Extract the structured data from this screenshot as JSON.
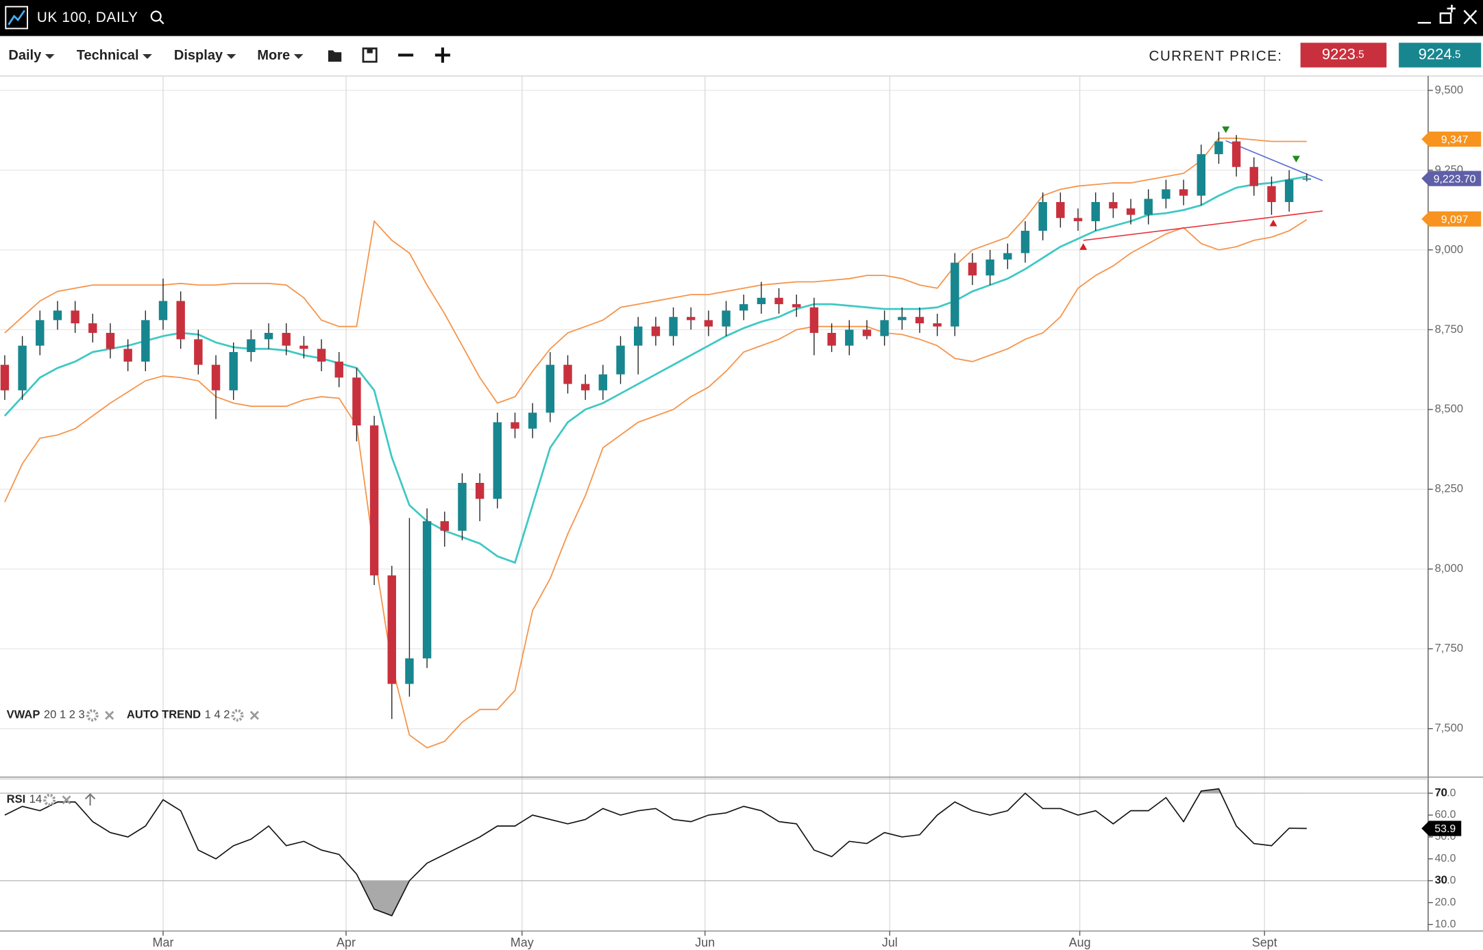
{
  "window": {
    "title": "UK 100, DAILY"
  },
  "toolbar": {
    "menus": [
      "Daily",
      "Technical",
      "Display",
      "More"
    ],
    "price_label": "CURRENT PRICE:",
    "bid": "9223",
    "bid_fraction": ".5",
    "ask": "9224",
    "ask_fraction": ".5"
  },
  "chart_data": {
    "type": "candlestick",
    "xlim": [
      -0.27,
      80.9
    ],
    "xticks": [
      {
        "value": 9,
        "label": "Mar"
      },
      {
        "value": 19.4,
        "label": "Apr"
      },
      {
        "value": 29.4,
        "label": "May"
      },
      {
        "value": 39.8,
        "label": "Jun"
      },
      {
        "value": 50.3,
        "label": "Jul"
      },
      {
        "value": 61.1,
        "label": "Aug"
      },
      {
        "value": 71.6,
        "label": "Sept"
      }
    ],
    "ylim": [
      7348,
      9545
    ],
    "yticks": [
      {
        "value": 7500,
        "label": "7,500"
      },
      {
        "value": 7750,
        "label": "7,750"
      },
      {
        "value": 8000,
        "label": "8,000"
      },
      {
        "value": 8250,
        "label": "8,250"
      },
      {
        "value": 8500,
        "label": "8,500"
      },
      {
        "value": 8750,
        "label": "8,750"
      },
      {
        "value": 9000,
        "label": "9,000"
      },
      {
        "value": 9250,
        "label": "9,250"
      },
      {
        "value": 9500,
        "label": "9,500"
      }
    ],
    "grid": true,
    "up_color": "#17868f",
    "down_color": "#c9303d",
    "open": [
      8640,
      8560,
      8700,
      8780,
      8810,
      8770,
      8740,
      8690,
      8650,
      8780,
      8840,
      8720,
      8640,
      8560,
      8680,
      8720,
      8740,
      8700,
      8690,
      8650,
      8600,
      8450,
      7980,
      7640,
      7720,
      8150,
      8120,
      8270,
      8220,
      8460,
      8440,
      8490,
      8640,
      8580,
      8560,
      8610,
      8700,
      8760,
      8730,
      8790,
      8780,
      8760,
      8810,
      8830,
      8850,
      8830,
      8820,
      8740,
      8700,
      8750,
      8730,
      8780,
      8790,
      8770,
      8760,
      8960,
      8920,
      8970,
      8990,
      9060,
      9150,
      9100,
      9090,
      9150,
      9130,
      9110,
      9160,
      9190,
      9170,
      9300,
      9340,
      9260,
      9200,
      9150,
      9220
    ],
    "high": [
      8670,
      8730,
      8810,
      8840,
      8840,
      8800,
      8770,
      8720,
      8810,
      8910,
      8870,
      8750,
      8670,
      8710,
      8750,
      8770,
      8770,
      8730,
      8720,
      8680,
      8630,
      8480,
      8010,
      8160,
      8190,
      8180,
      8300,
      8300,
      8490,
      8490,
      8520,
      8680,
      8670,
      8610,
      8640,
      8730,
      8790,
      8790,
      8820,
      8820,
      8810,
      8840,
      8860,
      8900,
      8880,
      8860,
      8850,
      8770,
      8780,
      8780,
      8810,
      8820,
      8820,
      8800,
      8990,
      8990,
      9000,
      9020,
      9090,
      9180,
      9180,
      9130,
      9180,
      9180,
      9160,
      9190,
      9220,
      9220,
      9330,
      9370,
      9360,
      9290,
      9230,
      9250,
      9240
    ],
    "low": [
      8530,
      8530,
      8670,
      8750,
      8740,
      8710,
      8660,
      8620,
      8620,
      8750,
      8690,
      8610,
      8470,
      8530,
      8650,
      8690,
      8670,
      8660,
      8620,
      8570,
      8400,
      7950,
      7530,
      7600,
      7690,
      8070,
      8090,
      8150,
      8190,
      8410,
      8410,
      8460,
      8550,
      8530,
      8530,
      8580,
      8610,
      8700,
      8700,
      8750,
      8730,
      8730,
      8780,
      8800,
      8800,
      8790,
      8670,
      8680,
      8670,
      8720,
      8700,
      8750,
      8740,
      8730,
      8730,
      8890,
      8890,
      8940,
      8960,
      9030,
      9070,
      9060,
      9060,
      9100,
      9080,
      9080,
      9130,
      9140,
      9140,
      9270,
      9230,
      9170,
      9110,
      9120,
      9215
    ],
    "close": [
      8560,
      8700,
      8780,
      8810,
      8770,
      8740,
      8690,
      8650,
      8780,
      8840,
      8720,
      8640,
      8560,
      8680,
      8720,
      8740,
      8700,
      8690,
      8650,
      8600,
      8450,
      7980,
      7640,
      7720,
      8150,
      8120,
      8270,
      8220,
      8460,
      8440,
      8490,
      8640,
      8580,
      8560,
      8610,
      8700,
      8760,
      8730,
      8790,
      8780,
      8760,
      8810,
      8830,
      8850,
      8830,
      8820,
      8740,
      8700,
      8750,
      8730,
      8780,
      8790,
      8770,
      8760,
      8960,
      8920,
      8970,
      8990,
      9060,
      9150,
      9100,
      9090,
      9150,
      9130,
      9110,
      9160,
      9190,
      9170,
      9300,
      9340,
      9260,
      9200,
      9150,
      9220,
      9224
    ],
    "indicators": [
      {
        "name": "VWAP",
        "params": "20 1 2 3",
        "lines": [
          {
            "color": "#f5944a",
            "width": 1.3,
            "values": [
              8740,
              8790,
              8840,
              8870,
              8880,
              8890,
              8890,
              8890,
              8890,
              8890,
              8895,
              8890,
              8890,
              8895,
              8895,
              8895,
              8890,
              8850,
              8780,
              8760,
              8760,
              9090,
              9030,
              8990,
              8890,
              8800,
              8700,
              8600,
              8520,
              8540,
              8620,
              8690,
              8740,
              8760,
              8780,
              8820,
              8830,
              8840,
              8850,
              8860,
              8860,
              8870,
              8880,
              8890,
              8895,
              8900,
              8900,
              8905,
              8910,
              8920,
              8920,
              8910,
              8890,
              8880,
              8950,
              9000,
              9020,
              9040,
              9100,
              9170,
              9190,
              9200,
              9205,
              9210,
              9210,
              9220,
              9230,
              9240,
              9280,
              9350,
              9350,
              9345,
              9340,
              9340,
              9340
            ]
          },
          {
            "color": "#3ec8c4",
            "width": 2,
            "values": [
              8480,
              8540,
              8600,
              8630,
              8650,
              8680,
              8690,
              8700,
              8715,
              8730,
              8740,
              8735,
              8710,
              8695,
              8690,
              8690,
              8685,
              8670,
              8660,
              8645,
              8630,
              8560,
              8350,
              8200,
              8150,
              8120,
              8100,
              8080,
              8040,
              8020,
              8200,
              8380,
              8460,
              8500,
              8520,
              8550,
              8580,
              8610,
              8640,
              8670,
              8700,
              8730,
              8755,
              8775,
              8790,
              8815,
              8830,
              8830,
              8825,
              8820,
              8815,
              8815,
              8815,
              8820,
              8840,
              8870,
              8890,
              8910,
              8940,
              8975,
              9010,
              9035,
              9060,
              9075,
              9090,
              9110,
              9115,
              9125,
              9140,
              9170,
              9195,
              9205,
              9210,
              9220,
              9230
            ]
          },
          {
            "color": "#f5944a",
            "width": 1.3,
            "values": [
              8210,
              8330,
              8410,
              8420,
              8440,
              8480,
              8520,
              8555,
              8590,
              8605,
              8600,
              8590,
              8540,
              8520,
              8510,
              8510,
              8510,
              8530,
              8540,
              8535,
              8450,
              8050,
              7700,
              7480,
              7440,
              7460,
              7520,
              7560,
              7560,
              7620,
              7870,
              7970,
              8110,
              8230,
              8380,
              8420,
              8460,
              8480,
              8500,
              8540,
              8570,
              8620,
              8680,
              8700,
              8720,
              8750,
              8760,
              8760,
              8760,
              8760,
              8740,
              8735,
              8720,
              8700,
              8660,
              8650,
              8670,
              8690,
              8720,
              8740,
              8790,
              8880,
              8920,
              8950,
              8990,
              9020,
              9050,
              9070,
              9020,
              9000,
              9010,
              9030,
              9040,
              9060,
              9095
            ]
          }
        ]
      },
      {
        "name": "AUTO TREND",
        "params": "1 4 2",
        "lines": [
          {
            "color": "#5b6fd6",
            "width": 1.2,
            "x": [
              69.4,
              74.9
            ],
            "y": [
              9342,
              9217
            ]
          },
          {
            "color": "#e8333c",
            "width": 1.2,
            "x": [
              61.3,
              74.9
            ],
            "y": [
              9030,
              9122
            ]
          }
        ],
        "markers": [
          {
            "x": 69.4,
            "y": 9378,
            "direction": "down",
            "color": "#1f8a1f"
          },
          {
            "x": 73.4,
            "y": 9286,
            "direction": "down",
            "color": "#1f8a1f"
          },
          {
            "x": 61.3,
            "y": 9009,
            "direction": "up",
            "color": "#d61f26"
          },
          {
            "x": 72.1,
            "y": 9083,
            "direction": "up",
            "color": "#d61f26"
          }
        ]
      }
    ],
    "price_labels": [
      {
        "value": 9347,
        "label": "9,347",
        "color": "#f7931e"
      },
      {
        "value": 9223.7,
        "label": "9,223.70",
        "color": "#5f5fa8"
      },
      {
        "value": 9097,
        "label": "9,097",
        "color": "#f7931e"
      }
    ],
    "rsi": {
      "name": "RSI",
      "params": "14",
      "ylim": [
        7,
        76.5
      ],
      "yticks": [
        {
          "value": 70,
          "label": "70.0"
        },
        {
          "value": 60,
          "label": "60.0"
        },
        {
          "value": 50,
          "label": "50.0"
        },
        {
          "value": 40,
          "label": "40.0"
        },
        {
          "value": 30,
          "label": "30.0"
        },
        {
          "value": 20,
          "label": "20.0"
        },
        {
          "value": 10,
          "label": "10.0"
        }
      ],
      "levels": [
        70,
        30
      ],
      "color": "#111111",
      "fill": "#a9a9a9",
      "values": [
        60,
        64,
        62,
        66,
        66,
        57,
        52,
        50,
        55,
        67,
        62,
        44,
        40,
        46,
        49,
        55,
        46,
        48,
        44,
        42,
        33,
        17,
        14,
        30,
        38,
        42,
        46,
        50,
        55,
        55,
        60,
        58,
        56,
        58,
        63,
        60,
        62,
        63,
        58,
        57,
        60,
        61,
        64,
        62,
        57,
        56,
        44,
        41,
        48,
        47,
        52,
        50,
        51,
        60,
        66,
        62,
        60,
        62,
        70,
        63,
        63,
        60,
        62,
        56,
        62,
        62,
        68,
        57,
        71,
        72,
        55,
        47,
        46,
        54,
        53.9
      ]
    }
  }
}
